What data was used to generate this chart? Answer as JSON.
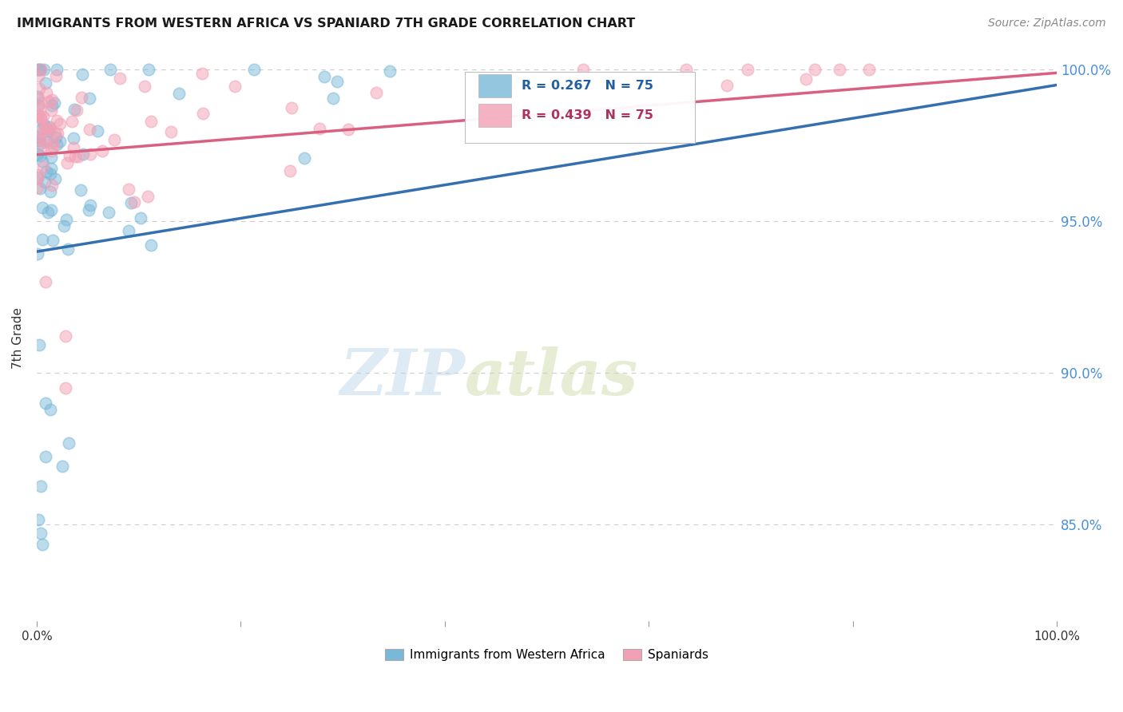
{
  "title": "IMMIGRANTS FROM WESTERN AFRICA VS SPANIARD 7TH GRADE CORRELATION CHART",
  "source": "Source: ZipAtlas.com",
  "ylabel": "7th Grade",
  "legend_blue_label": "R = 0.267   N = 75",
  "legend_pink_label": "R = 0.439   N = 75",
  "legend_blue_series": "Immigrants from Western Africa",
  "legend_pink_series": "Spaniards",
  "blue_color": "#7ab8d9",
  "pink_color": "#f2a0b5",
  "blue_line_color": "#3470b0",
  "pink_line_color": "#d96080",
  "watermark_zip": "ZIP",
  "watermark_atlas": "atlas",
  "xlim": [
    0.0,
    1.0
  ],
  "ylim": [
    0.818,
    1.005
  ],
  "yticks": [
    0.85,
    0.9,
    0.95,
    1.0
  ],
  "ytick_labels": [
    "85.0%",
    "90.0%",
    "95.0%",
    "100.0%"
  ],
  "background_color": "#ffffff",
  "grid_color": "#cccccc",
  "blue_seed": 42,
  "pink_seed": 17
}
